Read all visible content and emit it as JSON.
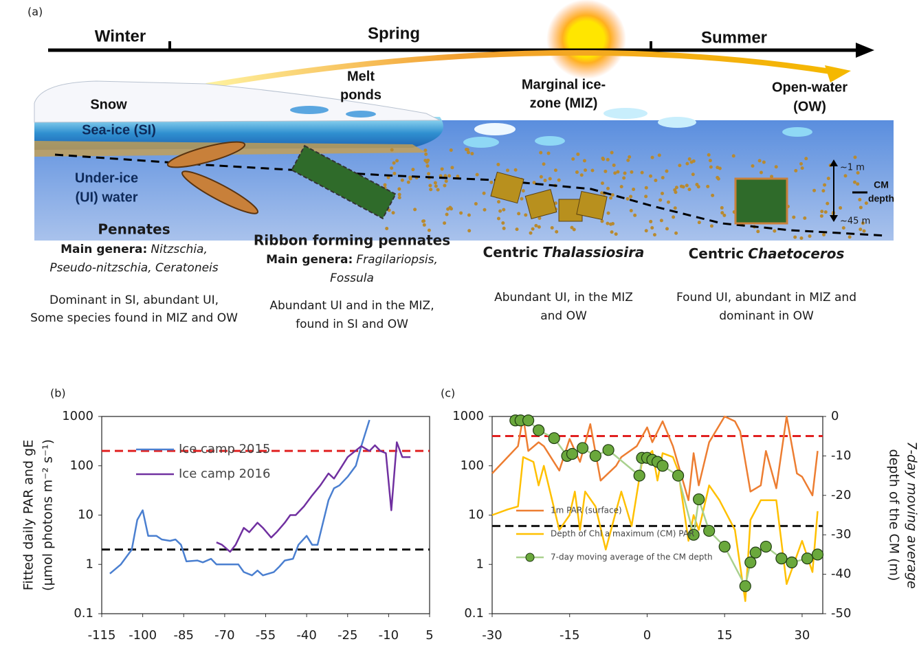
{
  "panel_a": {
    "label": "(a)",
    "seasons": [
      "Winter",
      "Spring",
      "Summer"
    ],
    "melt_ponds": [
      "Melt",
      "ponds"
    ],
    "miz": [
      "Marginal ice-",
      "zone (MIZ)"
    ],
    "ow": [
      "Open-water",
      "(OW)"
    ],
    "snow": "Snow",
    "sea_ice": "Sea-ice (SI)",
    "under_ice": [
      "Under-ice",
      "(UI) water"
    ],
    "depth_top": "~1 m",
    "cm_depth": [
      "CM",
      "depth"
    ],
    "depth_bottom": "~45 m",
    "groups": [
      {
        "title": "Pennates",
        "genera_label": "Main genera:",
        "genera": [
          "Nitzschia,",
          "Pseudo-nitzschia, Ceratoneis"
        ],
        "description": [
          "Dominant in SI, abundant UI,",
          "Some species found in MIZ and OW"
        ]
      },
      {
        "title": "Ribbon forming pennates",
        "genera_label": "Main genera:",
        "genera": [
          "Fragilariopsis,",
          "Fossula"
        ],
        "description": [
          "Abundant UI and in the MIZ,",
          "found in SI and OW"
        ]
      },
      {
        "title": "Centric",
        "genus": "Thalassiosira",
        "description": [
          "Abundant UI, in the MIZ",
          "and OW"
        ]
      },
      {
        "title": "Centric",
        "genus": "Chaetoceros",
        "description": [
          "Found UI, abundant in MIZ and",
          "dominant in OW"
        ]
      }
    ]
  },
  "chart_data": [
    {
      "type": "line",
      "panel_label": "(b)",
      "ylabel": [
        "Fitted daily PAR and gE",
        "(μmol photons m⁻² s⁻¹)"
      ],
      "xlim": [
        -115,
        5
      ],
      "xticks": [
        -115,
        -100,
        -85,
        -70,
        -55,
        -40,
        -25,
        -10,
        5
      ],
      "ylim": [
        0.1,
        1000
      ],
      "yticks": [
        0.1,
        1,
        10,
        100,
        1000
      ],
      "ylog": true,
      "legend": "upper left",
      "hlines": [
        {
          "value": 200,
          "color": "#e02020"
        },
        {
          "value": 2,
          "color": "#111111"
        }
      ],
      "series": [
        {
          "name": "Ice camp 2015",
          "color": "#4a7fd0",
          "x": [
            -112,
            -108,
            -104,
            -102,
            -100,
            -98,
            -95,
            -93,
            -90,
            -88,
            -86,
            -84,
            -80,
            -78,
            -75,
            -73,
            -70,
            -65,
            -63,
            -60,
            -58,
            -56,
            -52,
            -50,
            -48,
            -45,
            -43,
            -40,
            -38,
            -36,
            -32,
            -30,
            -28,
            -25,
            -22,
            -20,
            -17
          ],
          "values": [
            0.65,
            1.0,
            2.0,
            8,
            12.5,
            3.8,
            3.8,
            3.2,
            3.0,
            3.2,
            2.5,
            1.15,
            1.2,
            1.1,
            1.3,
            1.0,
            1.0,
            1.0,
            0.7,
            0.6,
            0.75,
            0.6,
            0.7,
            0.9,
            1.2,
            1.3,
            2.5,
            3.8,
            2.5,
            2.5,
            20,
            35,
            40,
            60,
            100,
            250,
            850
          ]
        },
        {
          "name": "Ice camp 2016",
          "color": "#7030a0",
          "x": [
            -73,
            -71,
            -68,
            -66,
            -63,
            -61,
            -58,
            -56,
            -53,
            -51,
            -48,
            -46,
            -44,
            -41,
            -38,
            -35,
            -32,
            -30,
            -27,
            -25,
            -20,
            -17,
            -15,
            -13,
            -11,
            -9,
            -7,
            -5,
            -2
          ],
          "values": [
            2.8,
            2.5,
            1.8,
            2.5,
            5.5,
            4.5,
            7,
            5.5,
            3.5,
            4.5,
            7,
            10,
            10,
            15,
            25,
            40,
            70,
            55,
            100,
            150,
            250,
            200,
            260,
            200,
            180,
            12.5,
            300,
            150,
            150
          ]
        }
      ]
    },
    {
      "type": "line",
      "panel_label": "(c)",
      "xlim": [
        -30,
        34
      ],
      "xticks": [
        -30,
        -15,
        0,
        15,
        30
      ],
      "ylim": [
        0.1,
        1000
      ],
      "yticks": [
        0.1,
        1,
        10,
        100,
        1000
      ],
      "ylog": true,
      "y2lim": [
        -50,
        0
      ],
      "y2ticks": [
        0,
        -10,
        -20,
        -30,
        -40,
        -50
      ],
      "y2label": [
        "7-day moving average",
        "depth of the CM (m)"
      ],
      "legend": "lower left",
      "hlines": [
        {
          "value": 400,
          "color": "#e02020"
        },
        {
          "value": 6,
          "color": "#111111"
        }
      ],
      "series": [
        {
          "name": "1m PAR (surface)",
          "color": "#ed7d31",
          "x": [
            -30,
            -27,
            -25,
            -24,
            -23,
            -21,
            -20,
            -17,
            -15,
            -13,
            -11,
            -9,
            -6,
            -5,
            -2,
            0,
            1,
            3,
            5,
            8,
            9,
            10,
            12,
            15,
            17,
            18,
            20,
            22,
            23,
            25,
            27,
            29,
            30,
            32,
            33
          ],
          "values": [
            70,
            150,
            250,
            1000,
            200,
            300,
            250,
            80,
            350,
            120,
            700,
            50,
            100,
            150,
            250,
            600,
            300,
            800,
            250,
            20,
            180,
            40,
            300,
            1000,
            800,
            500,
            30,
            40,
            200,
            35,
            1000,
            70,
            60,
            25,
            200
          ]
        },
        {
          "name": "Depth of Chl a maximum (CM) PAR",
          "color": "#ffc000",
          "x": [
            -30,
            -27,
            -25,
            -24,
            -22,
            -21,
            -20,
            -17,
            -15,
            -14,
            -13,
            -12,
            -10,
            -8,
            -5,
            -3,
            -1,
            1,
            2,
            3,
            5,
            6,
            8,
            9,
            10,
            12,
            14,
            17,
            19,
            20,
            22,
            25,
            27,
            30,
            32,
            33
          ],
          "values": [
            10,
            13,
            15,
            150,
            120,
            40,
            100,
            5,
            10,
            30,
            5,
            30,
            15,
            2,
            30,
            6,
            120,
            200,
            50,
            180,
            150,
            80,
            3,
            10,
            5,
            40,
            20,
            5,
            0.18,
            8,
            20,
            20,
            0.4,
            3,
            0.7,
            12
          ]
        },
        {
          "name": "7-day moving average of the CM depth",
          "color": "#a9d18e",
          "marker_color": "#6aa83c",
          "axis": "y2",
          "x": [
            -25.5,
            -24.5,
            -23,
            -21,
            -18,
            -15.5,
            -14.5,
            -12.5,
            -10,
            -7.5,
            -1.5,
            -1,
            0,
            1,
            2,
            3,
            6,
            9,
            10,
            12,
            15,
            19,
            20,
            21,
            23,
            26,
            28,
            31,
            33
          ],
          "values": [
            -1,
            -1,
            -1,
            -3.5,
            -5.5,
            -10,
            -9.5,
            -8,
            -10,
            -8.5,
            -15,
            -10.5,
            -10.5,
            -11,
            -11.5,
            -12.5,
            -15,
            -30,
            -21,
            -29,
            -33,
            -43,
            -37,
            -34.5,
            -33,
            -36,
            -37,
            -36,
            -35
          ]
        }
      ]
    }
  ]
}
